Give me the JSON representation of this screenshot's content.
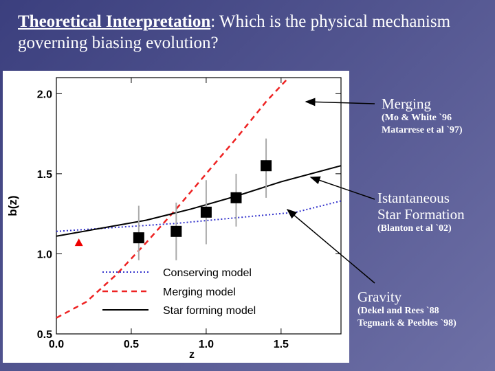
{
  "slide": {
    "title_em": "Theoretical Interpretation",
    "title_rest": ": Which is the physical mechanism governing  biasing evolution?"
  },
  "annotations": {
    "merging": {
      "label": "Merging",
      "ref1": "(Mo & White `96",
      "ref2": "Matarrese et al `97)"
    },
    "star_formation": {
      "label1": "Istantaneous",
      "label2": "Star Formation",
      "ref": "(Blanton et al `02)"
    },
    "gravity": {
      "label": "Gravity",
      "ref1": "(Dekel and Rees `88",
      "ref2": "Tegmark & Peebles `98)"
    }
  },
  "colors": {
    "conserving": "#3333cc",
    "merging": "#ee2222",
    "star_forming": "#000000",
    "points": "#000000",
    "triangle": "#ee0000",
    "errorbar": "#aaaaaa"
  },
  "chart_data": {
    "type": "line",
    "xlabel": "z",
    "ylabel": "b(z)",
    "xlim": [
      0.0,
      1.9
    ],
    "ylim": [
      0.5,
      2.1
    ],
    "x_ticks": [
      0.0,
      0.5,
      1.0,
      1.5
    ],
    "x_tick_labels": [
      "0.0",
      "0.5",
      "1.0",
      "1.5"
    ],
    "y_ticks": [
      0.5,
      1.0,
      1.5,
      2.0
    ],
    "y_tick_labels": [
      "0.5",
      "1.0",
      "1.5",
      "2.0"
    ],
    "legend_placement": "bottom-center",
    "series": [
      {
        "name": "Conserving model",
        "style": "dotted",
        "x": [
          0.0,
          0.4,
          0.8,
          1.2,
          1.6,
          1.9
        ],
        "y": [
          1.14,
          1.165,
          1.19,
          1.225,
          1.26,
          1.33
        ]
      },
      {
        "name": "Merging model",
        "style": "dashed",
        "x": [
          0.0,
          0.2,
          0.4,
          0.6,
          0.8,
          1.0,
          1.2,
          1.4,
          1.55
        ],
        "y": [
          0.6,
          0.7,
          0.87,
          1.07,
          1.28,
          1.5,
          1.72,
          1.95,
          2.1
        ]
      },
      {
        "name": "Star forming model",
        "style": "solid",
        "x": [
          0.0,
          0.3,
          0.6,
          0.9,
          1.2,
          1.5,
          1.9
        ],
        "y": [
          1.11,
          1.16,
          1.21,
          1.28,
          1.36,
          1.45,
          1.55
        ]
      }
    ],
    "points": {
      "x": [
        0.55,
        0.8,
        1.0,
        1.2,
        1.4
      ],
      "y": [
        1.1,
        1.14,
        1.26,
        1.35,
        1.55
      ],
      "err_low": [
        0.14,
        0.18,
        0.2,
        0.18,
        0.2
      ],
      "err_high": [
        0.2,
        0.18,
        0.2,
        0.15,
        0.17
      ]
    },
    "triangle": {
      "x": 0.15,
      "y": 1.07
    }
  }
}
